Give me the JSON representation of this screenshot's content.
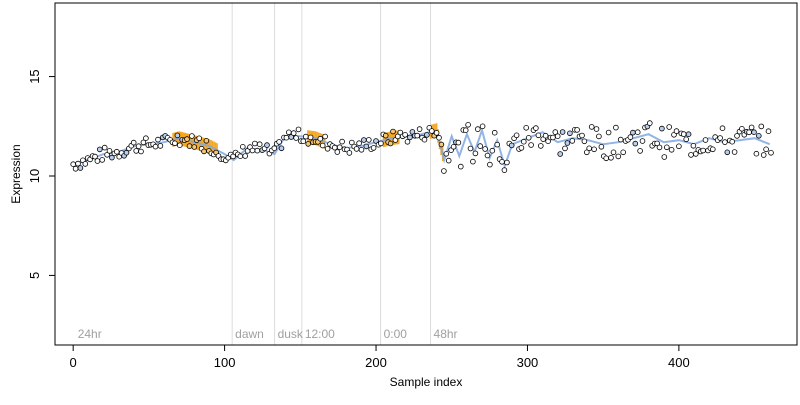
{
  "chart_data": {
    "type": "scatter",
    "title": "",
    "xlabel": "Sample index",
    "ylabel": "Expression",
    "xlim": [
      -12,
      478
    ],
    "ylim": [
      1.5,
      18.7
    ],
    "xticks": [
      0,
      100,
      200,
      300,
      400
    ],
    "yticks": [
      5,
      10,
      15
    ],
    "grid": false,
    "legend": "none",
    "phase_markers": [
      {
        "x": 105,
        "label": "dawn"
      },
      {
        "x": 133,
        "label": "dusk"
      },
      {
        "x": 151,
        "label": "12:00"
      },
      {
        "x": 203,
        "label": "0:00"
      },
      {
        "x": 236,
        "label": "48hr"
      }
    ],
    "phase_start_label": {
      "x": 3,
      "label": "24hr"
    },
    "highlight_ranges": [
      {
        "x_start": 66,
        "x_end": 95,
        "color": "#f5a623"
      },
      {
        "x_start": 155,
        "x_end": 166,
        "color": "#f5a623"
      },
      {
        "x_start": 205,
        "x_end": 215,
        "color": "#f5a623"
      },
      {
        "x_start": 236,
        "x_end": 244,
        "color": "#f5a623"
      }
    ],
    "trend_series": {
      "name": "",
      "color": "#7fa7e0",
      "x": [
        0,
        10,
        20,
        30,
        40,
        50,
        60,
        70,
        80,
        90,
        100,
        106,
        115,
        125,
        133,
        140,
        150,
        160,
        170,
        180,
        190,
        200,
        210,
        220,
        230,
        240,
        245,
        250,
        255,
        260,
        265,
        270,
        275,
        280,
        285,
        290,
        300,
        310,
        320,
        330,
        340,
        350,
        360,
        370,
        380,
        390,
        400,
        410,
        420,
        430,
        440,
        450,
        460
      ],
      "y": [
        10.6,
        10.8,
        11.1,
        11.2,
        11.5,
        11.6,
        11.7,
        11.9,
        11.7,
        11.5,
        11.1,
        10.8,
        11.4,
        11.3,
        11.1,
        12.0,
        12.0,
        11.9,
        11.6,
        11.4,
        11.5,
        11.7,
        11.9,
        12.0,
        12.1,
        12.3,
        10.8,
        12.0,
        11.0,
        12.1,
        11.2,
        12.3,
        10.9,
        11.8,
        10.5,
        11.6,
        11.9,
        12.2,
        11.7,
        11.9,
        11.8,
        11.6,
        11.7,
        11.9,
        12.1,
        11.7,
        11.8,
        11.6,
        11.9,
        11.7,
        11.8,
        11.9,
        11.6
      ]
    },
    "point_style": {
      "fill": "#ffffff",
      "stroke": "#000000"
    },
    "noise_seed": 7
  }
}
